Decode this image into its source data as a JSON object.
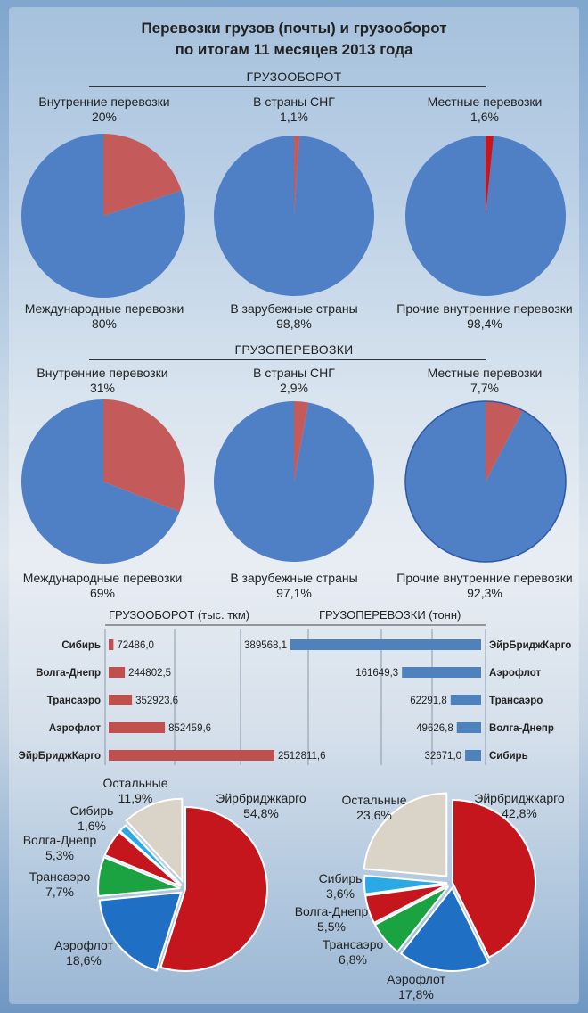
{
  "title": {
    "line1": "Перевозки грузов (почты) и грузооборот",
    "line2": "по итогам 11 месяцев 2013 года"
  },
  "colors": {
    "blue": "#4f7fc4",
    "red": "#c45a5a",
    "dark_red": "#c4161c"
  },
  "chart_data": [
    {
      "type": "pie",
      "section": "ГРУЗООБОРОТ",
      "id": "gb1",
      "top_label": "Внутренние перевозки",
      "top_value": "20%",
      "bottom_label": "Международные перевозки",
      "bottom_value": "80%",
      "highlight_percent": 20
    },
    {
      "type": "pie",
      "section": "ГРУЗООБОРОТ",
      "id": "gb2",
      "top_label": "В страны СНГ",
      "top_value": "1,1%",
      "bottom_label": "В зарубежные страны",
      "bottom_value": "98,8%",
      "highlight_percent": 1.1
    },
    {
      "type": "pie",
      "section": "ГРУЗООБОРОТ",
      "id": "gb3",
      "top_label": "Местные перевозки",
      "top_value": "1,6%",
      "bottom_label": "Прочие внутренние перевозки",
      "bottom_value": "98,4%",
      "highlight_percent": 1.6
    },
    {
      "type": "pie",
      "section": "ГРУЗОПЕРЕВОЗКИ",
      "id": "gp1",
      "top_label": "Внутренние перевозки",
      "top_value": "31%",
      "bottom_label": "Международные перевозки",
      "bottom_value": "69%",
      "highlight_percent": 31
    },
    {
      "type": "pie",
      "section": "ГРУЗОПЕРЕВОЗКИ",
      "id": "gp2",
      "top_label": "В страны СНГ",
      "top_value": "2,9%",
      "bottom_label": "В зарубежные страны",
      "bottom_value": "97,1%",
      "highlight_percent": 2.9
    },
    {
      "type": "pie",
      "section": "ГРУЗОПЕРЕВОЗКИ",
      "id": "gp3",
      "top_label": "Местные перевозки",
      "top_value": "7,7%",
      "bottom_label": "Прочие внутренние перевозки",
      "bottom_value": "92,3%",
      "highlight_percent": 7.7
    },
    {
      "type": "bar",
      "id": "bar_left",
      "orientation": "horizontal",
      "title": "ГРУЗООБОРОТ (тыс. ткм)",
      "categories": [
        "Сибирь",
        "Волга-Днепр",
        "Трансаэро",
        "Аэрофлот",
        "ЭйрБриджКарго"
      ],
      "values": [
        72486.0,
        244802.5,
        352923.6,
        852459.6,
        2512811.6
      ],
      "value_labels": [
        "72486,0",
        "244802,5",
        "352923,6",
        "852459,6",
        "2512811,6"
      ]
    },
    {
      "type": "bar",
      "id": "bar_right",
      "orientation": "horizontal",
      "title": "ГРУЗОПЕРЕВОЗКИ (тонн)",
      "categories": [
        "ЭйрБриджКарго",
        "Аэрофлот",
        "Трансаэро",
        "Волга-Днепр",
        "Сибирь"
      ],
      "values": [
        389568.1,
        161649.3,
        62291.8,
        49626.8,
        32671.0
      ],
      "value_labels": [
        "389568,1",
        "161649,3",
        "62291,8",
        "49626,8",
        "32671,0"
      ]
    },
    {
      "type": "pie",
      "id": "share_left",
      "slices": [
        {
          "label": "Эйрбриджкарго",
          "value": 54.8,
          "text": "54,8%",
          "color": "#c4161c"
        },
        {
          "label": "Аэрофлот",
          "value": 18.6,
          "text": "18,6%",
          "color": "#1f6fc5"
        },
        {
          "label": "Трансаэро",
          "value": 7.7,
          "text": "7,7%",
          "color": "#1aa340"
        },
        {
          "label": "Волга-Днепр",
          "value": 5.3,
          "text": "5,3%",
          "color": "#c4161c"
        },
        {
          "label": "Сибирь",
          "value": 1.6,
          "text": "1,6%",
          "color": "#29a9e6"
        },
        {
          "label": "Остальные",
          "value": 11.9,
          "text": "11,9%",
          "color": "#d9d4c7"
        }
      ]
    },
    {
      "type": "pie",
      "id": "share_right",
      "slices": [
        {
          "label": "Эйрбриджкарго",
          "value": 42.8,
          "text": "42,8%",
          "color": "#c4161c"
        },
        {
          "label": "Аэрофлот",
          "value": 17.8,
          "text": "17,8%",
          "color": "#1f6fc5"
        },
        {
          "label": "Трансаэро",
          "value": 6.8,
          "text": "6,8%",
          "color": "#1aa340"
        },
        {
          "label": "Волга-Днепр",
          "value": 5.5,
          "text": "5,5%",
          "color": "#c4161c"
        },
        {
          "label": "Сибирь",
          "value": 3.6,
          "text": "3,6%",
          "color": "#29a9e6"
        },
        {
          "label": "Остальные",
          "value": 23.6,
          "text": "23,6%",
          "color": "#d9d4c7"
        }
      ]
    }
  ]
}
